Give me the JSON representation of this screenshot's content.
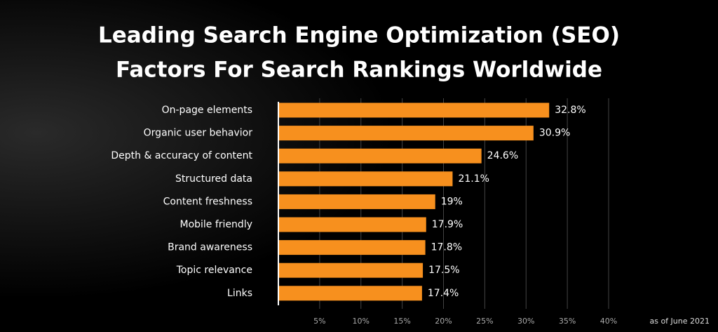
{
  "chart_data": {
    "type": "bar",
    "orientation": "horizontal",
    "title": [
      "Leading Search Engine Optimization (SEO)",
      "Factors For Search Rankings Worldwide"
    ],
    "note": "as of June 2021",
    "categories": [
      "On-page elements",
      "Organic user behavior",
      "Depth & accuracy of content",
      "Structured data",
      "Content freshness",
      "Mobile friendly",
      "Brand awareness",
      "Topic relevance",
      "Links"
    ],
    "values": [
      32.8,
      30.9,
      24.6,
      21.1,
      19,
      17.9,
      17.8,
      17.5,
      17.4
    ],
    "value_labels": [
      "32.8%",
      "30.9%",
      "24.6%",
      "21.1%",
      "19%",
      "17.9%",
      "17.8%",
      "17.5%",
      "17.4%"
    ],
    "color": "#f7901e",
    "xlim": [
      0,
      40
    ],
    "xticks": [
      {
        "value": 5,
        "label": "5%"
      },
      {
        "value": 10,
        "label": "10%"
      },
      {
        "value": 15,
        "label": "15%"
      },
      {
        "value": 20,
        "label": "20%"
      },
      {
        "value": 25,
        "label": "25%"
      },
      {
        "value": 30,
        "label": "30%"
      },
      {
        "value": 35,
        "label": "35%"
      },
      {
        "value": 40,
        "label": "40%"
      }
    ],
    "grid": true
  }
}
